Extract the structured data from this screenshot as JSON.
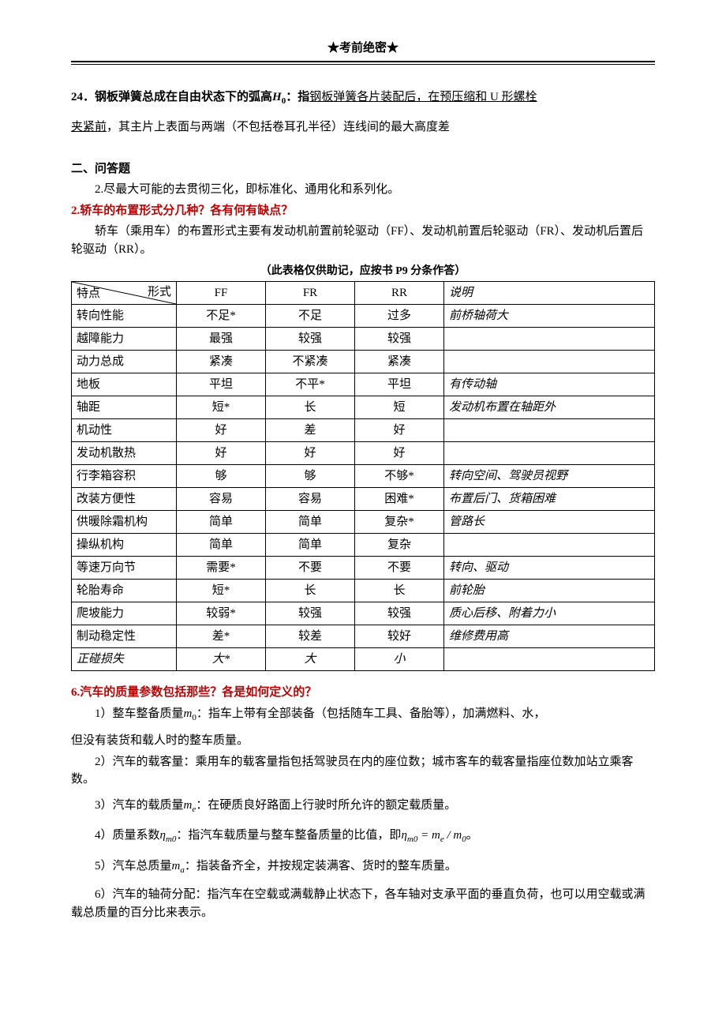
{
  "header": "★考前绝密★",
  "q24": {
    "prefix": "24．钢板弹簧总成在自由状态下的弧高",
    "h0": "H",
    "h0_sub": "0",
    "colon": "：指",
    "ul1": "钢板弹簧各片装配后，在预压缩和 U 形螺栓",
    "ul2": "夹紧前",
    "rest": "，其主片上表面与两端（不包括卷耳孔半径）连线间的最大高度差"
  },
  "sec2_title": "二、问答题",
  "sec2_a": "2.尽最大可能的去贯彻三化，即标准化、通用化和系列化。",
  "q2_title": "2.轿车的布置形式分几种？各有何有缺点？",
  "q2_para": "轿车（乘用车）的布置形式主要有发动机前置前轮驱动（FF）、发动机前置后轮驱动（FR）、发动机后置后轮驱动（RR）。",
  "table_note": "（此表格仅供助记，应按书 P9 分条作答）",
  "table": {
    "headers": {
      "c1a": "特点",
      "c1b": "形式",
      "c2": "FF",
      "c3": "FR",
      "c4": "RR",
      "c5": "说明"
    },
    "rows": [
      {
        "c1": "转向性能",
        "c2": "不足*",
        "c3": "不足",
        "c4": "过多",
        "c5": "前桥轴荷大"
      },
      {
        "c1": "越障能力",
        "c2": "最强",
        "c3": "较强",
        "c4": "较强",
        "c5": ""
      },
      {
        "c1": "动力总成",
        "c2": "紧凑",
        "c3": "不紧凑",
        "c4": "紧凑",
        "c5": ""
      },
      {
        "c1": "地板",
        "c2": "平坦",
        "c3": "不平*",
        "c4": "平坦",
        "c5": "有传动轴"
      },
      {
        "c1": "轴距",
        "c2": "短*",
        "c3": "长",
        "c4": "短",
        "c5": "发动机布置在轴距外"
      },
      {
        "c1": "机动性",
        "c2": "好",
        "c3": "差",
        "c4": "好",
        "c5": ""
      },
      {
        "c1": "发动机散热",
        "c2": "好",
        "c3": "好",
        "c4": "好",
        "c5": ""
      },
      {
        "c1": "行李箱容积",
        "c2": "够",
        "c3": "够",
        "c4": "不够*",
        "c5": "转向空间、驾驶员视野"
      },
      {
        "c1": "改装方便性",
        "c2": "容易",
        "c3": "容易",
        "c4": "困难*",
        "c5": "布置后门、货箱困难"
      },
      {
        "c1": "供暖除霜机构",
        "c2": "简单",
        "c3": "简单",
        "c4": "复杂*",
        "c5": "管路长"
      },
      {
        "c1": "操纵机构",
        "c2": "简单",
        "c3": "简单",
        "c4": "复杂",
        "c5": ""
      },
      {
        "c1": "等速万向节",
        "c2": "需要*",
        "c3": "不要",
        "c4": "不要",
        "c5": "转向、驱动"
      },
      {
        "c1": "轮胎寿命",
        "c2": "短*",
        "c3": "长",
        "c4": "长",
        "c5": "前轮胎"
      },
      {
        "c1": "爬坡能力",
        "c2": "较弱*",
        "c3": "较强",
        "c4": "较强",
        "c5": "质心后移、附着力小"
      },
      {
        "c1": "制动稳定性",
        "c2": "差*",
        "c3": "较差",
        "c4": "较好",
        "c5": "维修费用高"
      },
      {
        "c1": "正碰损失",
        "c1_italic": true,
        "c2": "大*",
        "c2_italic": true,
        "c3": "大",
        "c3_italic": true,
        "c4": "小",
        "c4_italic": true,
        "c5": ""
      }
    ]
  },
  "q6_title": "6.汽车的质量参数包括那些？各是如何定义的？",
  "q6": {
    "p1a": "1）整车整备质量",
    "p1m": "m",
    "p1s": "0",
    "p1b": "：指车上带有全部装备（包括随车工具、备胎等），加满燃料、水，",
    "p1c": "但没有装货和载人时的整车质量。",
    "p2": "2）汽车的载客量：乘用车的载客量指包括驾驶员在内的座位数；城市客车的载客量指座位数加站立乘客数。",
    "p3a": "3）汽车的载质量",
    "p3m": "m",
    "p3s": "e",
    "p3b": "：在硬质良好路面上行驶时所允许的额定载质量。",
    "p4a": "4）质量系数",
    "p4eta": "η",
    "p4etas": "m0",
    "p4b": "：指汽车载质量与整车整备质量的比值，即",
    "p4eq_eta": "η",
    "p4eq_etas": "m0",
    "p4eq_mid": " = m",
    "p4eq_es": "e",
    "p4eq_div": " / m",
    "p4eq_0s": "0",
    "p4end": "。",
    "p5a": "5）汽车总质量",
    "p5m": "m",
    "p5s": "a",
    "p5b": "：指装备齐全，并按规定装满客、货时的整车质量。",
    "p6": "6）汽车的轴荷分配：指汽车在空载或满载静止状态下，各车轴对支承平面的垂直负荷，也可以用空载或满载总质量的百分比来表示。"
  }
}
